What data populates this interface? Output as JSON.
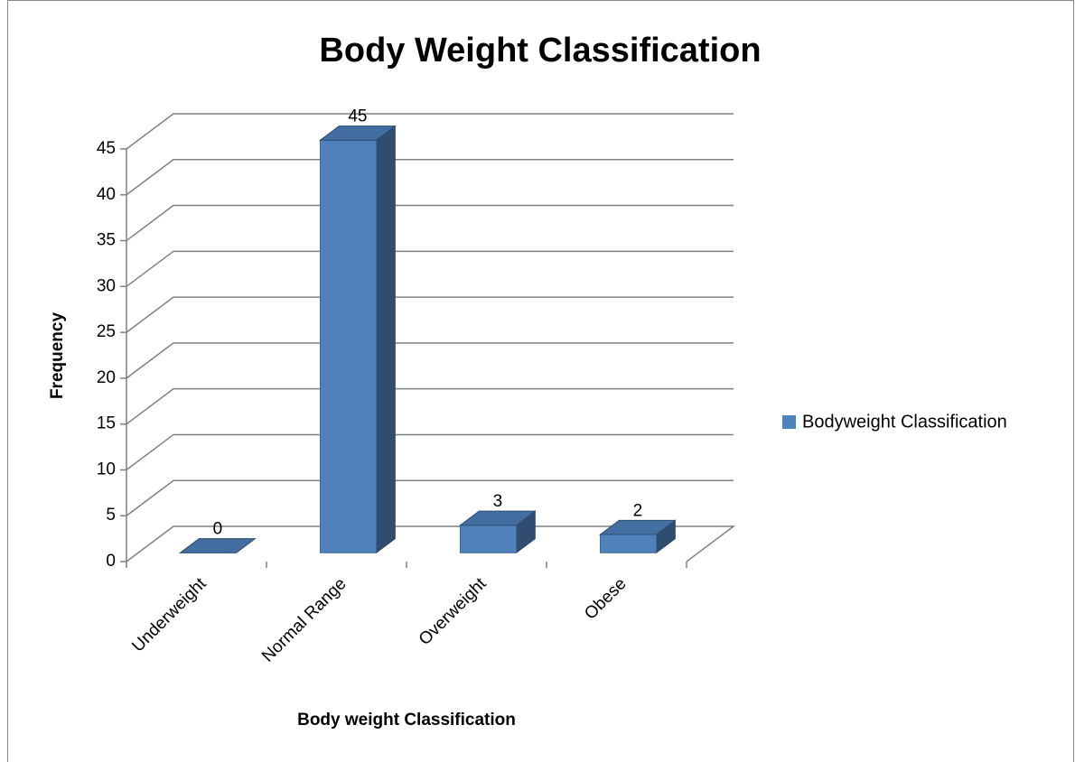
{
  "chart_data": {
    "type": "bar3d",
    "title": "Body Weight Classification",
    "x_label": "Body weight Classification",
    "y_label": "Frequency",
    "categories": [
      "Underweight",
      "Normal Range",
      "Overweight",
      "Obese"
    ],
    "series": [
      {
        "name": "Bodyweight Classification",
        "color": "#4f81bd",
        "values": [
          0,
          45,
          3,
          2
        ]
      }
    ],
    "ylim": [
      0,
      45
    ],
    "yticks": [
      0,
      5,
      10,
      15,
      20,
      25,
      30,
      35,
      40,
      45
    ],
    "grid": true,
    "legend": "right"
  }
}
